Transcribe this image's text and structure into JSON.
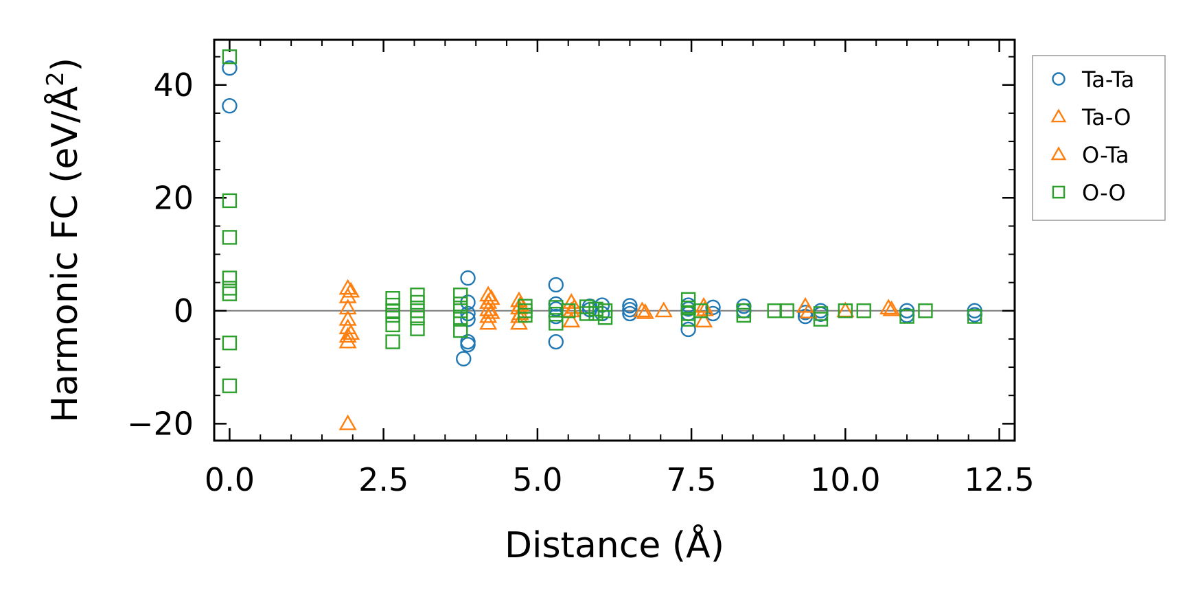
{
  "chart_data": {
    "type": "scatter",
    "title": "",
    "xlabel": "Distance (Å)",
    "ylabel_main": "Harmonic FC (eV/Å",
    "ylabel_sup": "2",
    "ylabel_close": ")",
    "xlim": [
      -0.25,
      12.75
    ],
    "ylim": [
      -23,
      48
    ],
    "xticks": [
      0.0,
      2.5,
      5.0,
      7.5,
      10.0,
      12.5
    ],
    "xtick_labels": [
      "0.0",
      "2.5",
      "5.0",
      "7.5",
      "10.0",
      "12.5"
    ],
    "yticks": [
      -20,
      0,
      20,
      40
    ],
    "ytick_labels": [
      "−20",
      "0",
      "20",
      "40"
    ],
    "zero_line": true,
    "legend_position": "outside-right-top",
    "series": [
      {
        "name": "Ta-Ta",
        "marker": "circle",
        "color": "#1f77b4",
        "points": [
          [
            0.0,
            43.0
          ],
          [
            0.0,
            36.3
          ],
          [
            3.8,
            -8.5
          ],
          [
            3.87,
            5.8
          ],
          [
            3.87,
            1.5
          ],
          [
            3.87,
            -0.5
          ],
          [
            3.87,
            -1.5
          ],
          [
            3.87,
            -5.5
          ],
          [
            3.87,
            -6.0
          ],
          [
            5.3,
            4.6
          ],
          [
            5.3,
            1.2
          ],
          [
            5.3,
            0.3
          ],
          [
            5.3,
            -1.0
          ],
          [
            5.3,
            -5.5
          ],
          [
            5.85,
            0.8
          ],
          [
            5.85,
            0.2
          ],
          [
            6.05,
            1.0
          ],
          [
            6.05,
            -0.5
          ],
          [
            6.5,
            0.9
          ],
          [
            6.5,
            0.2
          ],
          [
            6.5,
            -0.5
          ],
          [
            7.45,
            1.0
          ],
          [
            7.45,
            0.3
          ],
          [
            7.45,
            -0.5
          ],
          [
            7.45,
            -3.3
          ],
          [
            7.85,
            0.6
          ],
          [
            7.85,
            -0.5
          ],
          [
            8.35,
            0.8
          ],
          [
            8.35,
            0.0
          ],
          [
            9.35,
            -0.3
          ],
          [
            9.35,
            -1.0
          ],
          [
            9.6,
            0.0
          ],
          [
            9.6,
            -0.6
          ],
          [
            11.0,
            0.0
          ],
          [
            11.0,
            -0.8
          ],
          [
            12.1,
            0.0
          ],
          [
            12.1,
            -0.7
          ]
        ]
      },
      {
        "name": "Ta-O",
        "marker": "triangle",
        "color": "#ff7f0e",
        "points": [
          [
            1.92,
            4.0
          ],
          [
            1.92,
            2.5
          ],
          [
            1.92,
            0.5
          ],
          [
            1.92,
            -1.5
          ],
          [
            1.92,
            -3.0
          ],
          [
            1.92,
            -4.5
          ],
          [
            1.92,
            -5.5
          ],
          [
            1.92,
            -20.0
          ],
          [
            4.2,
            2.8
          ],
          [
            4.2,
            1.5
          ],
          [
            4.2,
            0.2
          ],
          [
            4.2,
            -1.0
          ],
          [
            4.2,
            -2.2
          ],
          [
            4.7,
            1.8
          ],
          [
            4.7,
            0.5
          ],
          [
            4.7,
            -1.0
          ],
          [
            4.7,
            -2.2
          ],
          [
            5.55,
            1.5
          ],
          [
            5.55,
            0.0
          ],
          [
            5.55,
            -1.8
          ],
          [
            6.7,
            0.0
          ],
          [
            7.05,
            0.0
          ],
          [
            7.7,
            0.8
          ],
          [
            7.7,
            -1.8
          ],
          [
            9.35,
            0.8
          ],
          [
            10.0,
            0.0
          ],
          [
            10.7,
            0.5
          ]
        ]
      },
      {
        "name": "O-Ta",
        "marker": "triangle",
        "color": "#ff7f0e",
        "points": [
          [
            1.97,
            3.5
          ],
          [
            1.97,
            -4.0
          ],
          [
            4.25,
            2.2
          ],
          [
            4.25,
            -0.3
          ],
          [
            4.72,
            1.0
          ],
          [
            4.72,
            -0.5
          ],
          [
            5.6,
            0.6
          ],
          [
            6.75,
            -0.3
          ],
          [
            7.72,
            0.2
          ],
          [
            9.4,
            -0.2
          ],
          [
            10.75,
            0.2
          ]
        ]
      },
      {
        "name": "O-O",
        "marker": "square",
        "color": "#2ca02c",
        "points": [
          [
            0.0,
            45.0
          ],
          [
            0.0,
            19.5
          ],
          [
            0.0,
            13.0
          ],
          [
            0.0,
            5.8
          ],
          [
            0.0,
            4.0
          ],
          [
            0.0,
            3.0
          ],
          [
            0.0,
            -5.7
          ],
          [
            0.0,
            -13.3
          ],
          [
            2.65,
            2.2
          ],
          [
            2.65,
            1.0
          ],
          [
            2.65,
            0.0
          ],
          [
            2.65,
            -0.8
          ],
          [
            2.65,
            -2.5
          ],
          [
            2.65,
            -5.5
          ],
          [
            3.05,
            2.8
          ],
          [
            3.05,
            1.5
          ],
          [
            3.05,
            0.0
          ],
          [
            3.05,
            -1.3
          ],
          [
            3.05,
            -3.2
          ],
          [
            3.75,
            2.8
          ],
          [
            3.75,
            1.2
          ],
          [
            3.75,
            0.0
          ],
          [
            3.75,
            -1.5
          ],
          [
            3.75,
            -3.5
          ],
          [
            4.8,
            0.8
          ],
          [
            4.8,
            0.0
          ],
          [
            4.8,
            -0.8
          ],
          [
            5.3,
            0.6
          ],
          [
            5.3,
            -0.6
          ],
          [
            5.3,
            -2.2
          ],
          [
            5.5,
            0.0
          ],
          [
            5.8,
            0.7
          ],
          [
            5.8,
            -0.5
          ],
          [
            5.95,
            0.3
          ],
          [
            5.95,
            -0.5
          ],
          [
            6.1,
            0.0
          ],
          [
            6.1,
            -1.2
          ],
          [
            7.45,
            2.0
          ],
          [
            7.45,
            0.5
          ],
          [
            7.45,
            -0.5
          ],
          [
            7.45,
            -1.5
          ],
          [
            7.65,
            0.0
          ],
          [
            8.35,
            0.0
          ],
          [
            8.35,
            -0.8
          ],
          [
            8.85,
            0.0
          ],
          [
            9.05,
            0.0
          ],
          [
            9.6,
            -0.5
          ],
          [
            9.6,
            -1.5
          ],
          [
            10.0,
            0.0
          ],
          [
            10.3,
            0.0
          ],
          [
            11.0,
            -1.0
          ],
          [
            11.3,
            0.0
          ],
          [
            12.1,
            -1.0
          ]
        ]
      }
    ]
  }
}
